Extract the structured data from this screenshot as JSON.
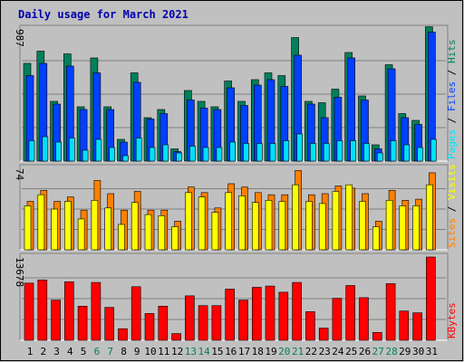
{
  "colors": {
    "background": "#c0c0c0",
    "frame_dark": "#808080",
    "frame_light": "#ffffff",
    "title": "#0000b0",
    "hits": "#00805c",
    "files": "#0040ff",
    "pages": "#00e0ff",
    "visits": "#ffff00",
    "sites": "#ff8000",
    "kbytes": "#ff0000",
    "weekend_label": "#00805c",
    "weekday_label": "#000000"
  },
  "chart_data": {
    "type": "bar",
    "title": "Daily usage for March 2021",
    "categories": [
      "1",
      "2",
      "3",
      "4",
      "5",
      "6",
      "7",
      "8",
      "9",
      "10",
      "11",
      "12",
      "13",
      "14",
      "15",
      "16",
      "17",
      "18",
      "19",
      "20",
      "21",
      "22",
      "23",
      "24",
      "25",
      "26",
      "27",
      "28",
      "29",
      "30",
      "31"
    ],
    "weekend_days": [
      "6",
      "7",
      "13",
      "14",
      "20",
      "21",
      "27",
      "28"
    ],
    "panels": [
      {
        "id": "hits-files-pages",
        "y_max_label": "987",
        "ylim": [
          0,
          987
        ],
        "grid": true,
        "series_labels": [
          "Pages",
          "Files",
          "Hits"
        ],
        "series": [
          {
            "name": "Hits",
            "values": [
              720,
              810,
              440,
              790,
              400,
              760,
              400,
              160,
              650,
              320,
              380,
              90,
              520,
              440,
              400,
              590,
              440,
              600,
              650,
              630,
              910,
              440,
              430,
              530,
              800,
              480,
              120,
              710,
              350,
              300,
              990
            ]
          },
          {
            "name": "Files",
            "values": [
              630,
              720,
              420,
              700,
              380,
              650,
              380,
              140,
              580,
              310,
              350,
              70,
              450,
              390,
              380,
              540,
              410,
              560,
              600,
              550,
              780,
              420,
              320,
              470,
              760,
              450,
              90,
              680,
              320,
              270,
              950
            ]
          },
          {
            "name": "Pages",
            "values": [
              150,
              180,
              140,
              170,
              80,
              160,
              100,
              40,
              170,
              100,
              120,
              60,
              110,
              100,
              100,
              140,
              130,
              130,
              130,
              150,
              200,
              130,
              130,
              150,
              150,
              130,
              60,
              150,
              120,
              100,
              160
            ]
          }
        ]
      },
      {
        "id": "visits-sites",
        "y_max_label": "74",
        "ylim": [
          0,
          74
        ],
        "grid": true,
        "series_labels": [
          "Sites",
          "Visits"
        ],
        "series": [
          {
            "name": "Visits",
            "values": [
              40,
              50,
              37,
              44,
              28,
              45,
              38,
              23,
              43,
              32,
              31,
              21,
              52,
              48,
              34,
              52,
              49,
              43,
              45,
              44,
              59,
              44,
              42,
              53,
              59,
              44,
              21,
              45,
              40,
              40,
              59
            ]
          },
          {
            "name": "Sites",
            "values": [
              44,
              54,
              44,
              48,
              36,
              63,
              51,
              36,
              53,
              36,
              36,
              26,
              57,
              52,
              38,
              60,
              57,
              52,
              50,
              50,
              72,
              50,
              51,
              58,
              56,
              51,
              26,
              54,
              45,
              46,
              70
            ]
          }
        ]
      },
      {
        "id": "kbytes",
        "y_max_label": "13678",
        "ylim": [
          0,
          13678
        ],
        "grid": true,
        "series_labels": [
          "KBytes"
        ],
        "series": [
          {
            "name": "KBytes",
            "values": [
              9400,
              9900,
              6600,
              9600,
              5600,
              9500,
              5400,
              1900,
              8800,
              4400,
              5600,
              1100,
              7300,
              5700,
              5700,
              8400,
              6600,
              8700,
              8900,
              7900,
              9500,
              4700,
              2000,
              6900,
              9000,
              7000,
              1300,
              9300,
              4800,
              4500,
              13678
            ]
          }
        ]
      }
    ]
  }
}
